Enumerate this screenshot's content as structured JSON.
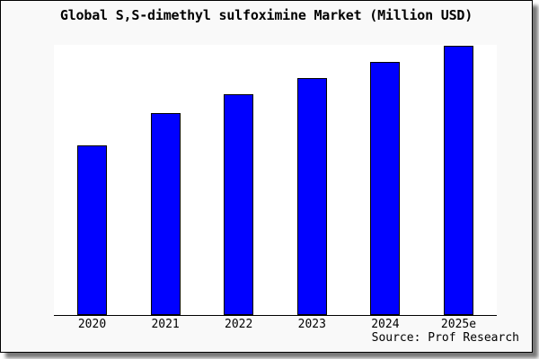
{
  "title": "Global S,S-dimethyl sulfoximine Market (Million USD)",
  "source": "Source: Prof Research",
  "colors": {
    "bar_fill": "#0000ff",
    "bar_border": "#000000",
    "figure_background": "#f9f9f9",
    "plot_background": "#ffffff",
    "axis": "#000000",
    "title_text": "#000000"
  },
  "chart_data": {
    "type": "bar",
    "title": "Global S,S-dimethyl sulfoximine Market (Million USD)",
    "categories": [
      "2020",
      "2021",
      "2022",
      "2023",
      "2024",
      "2025e"
    ],
    "values": [
      63,
      75,
      82,
      88,
      94,
      100
    ],
    "value_scale": "relative index estimated from bar heights; 2025e = 100; chart displays no y-axis tick labels",
    "xlabel": "",
    "ylabel": "",
    "ylim": [
      0,
      100
    ],
    "grid": false,
    "legend": "none",
    "source": "Source: Prof Research"
  }
}
